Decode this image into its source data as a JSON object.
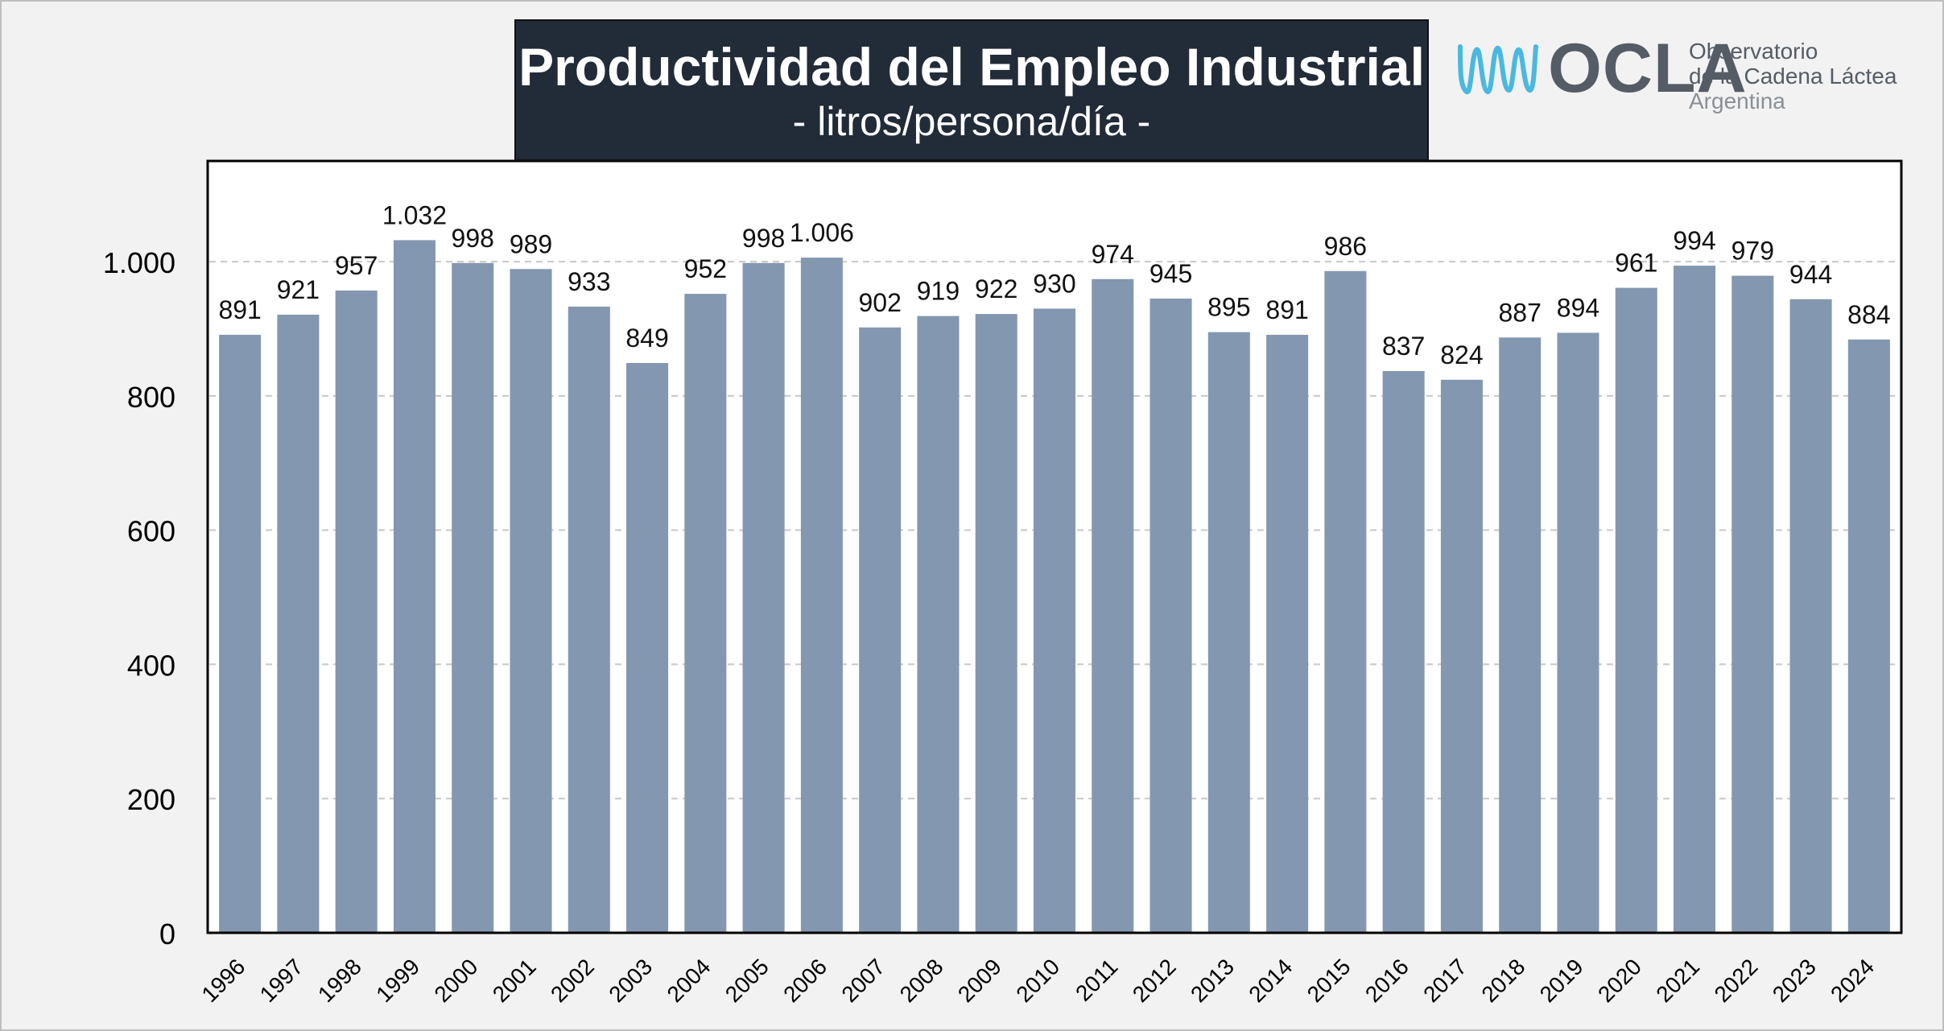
{
  "header": {
    "title": "Productividad del Empleo Industrial",
    "subtitle": "- litros/persona/día -"
  },
  "logo": {
    "icon": "milk-wave-icon",
    "wordmark": "OCLA",
    "line1": "Observatorio",
    "line2": "de la Cadena Láctea",
    "line3": "Argentina",
    "accent_color": "#4ab8e0",
    "text_color": "#555c66"
  },
  "chart_data": {
    "type": "bar",
    "categories": [
      "1996",
      "1997",
      "1998",
      "1999",
      "2000",
      "2001",
      "2002",
      "2003",
      "2004",
      "2005",
      "2006",
      "2007",
      "2008",
      "2009",
      "2010",
      "2011",
      "2012",
      "2013",
      "2014",
      "2015",
      "2016",
      "2017",
      "2018",
      "2019",
      "2020",
      "2021",
      "2022",
      "2023",
      "2024"
    ],
    "values": [
      891,
      921,
      957,
      1032,
      998,
      989,
      933,
      849,
      952,
      998,
      1006,
      902,
      919,
      922,
      930,
      974,
      945,
      895,
      891,
      986,
      837,
      824,
      887,
      894,
      961,
      994,
      979,
      944,
      884
    ],
    "data_labels": [
      "891",
      "921",
      "957",
      "1.032",
      "998",
      "989",
      "933",
      "849",
      "952",
      "998",
      "1.006",
      "902",
      "919",
      "922",
      "930",
      "974",
      "945",
      "895",
      "891",
      "986",
      "837",
      "824",
      "887",
      "894",
      "961",
      "994",
      "979",
      "944",
      "884"
    ],
    "title": "Productividad del Empleo Industrial",
    "subtitle": "- litros/persona/día -",
    "ylim": [
      0,
      1150
    ],
    "yticks": [
      0,
      200,
      400,
      600,
      800,
      1000
    ],
    "ytick_labels": [
      "0",
      "200",
      "400",
      "600",
      "800",
      "1.000"
    ],
    "grid": "horizontal dashed",
    "bar_color": "#8497b0",
    "legend": "none"
  }
}
